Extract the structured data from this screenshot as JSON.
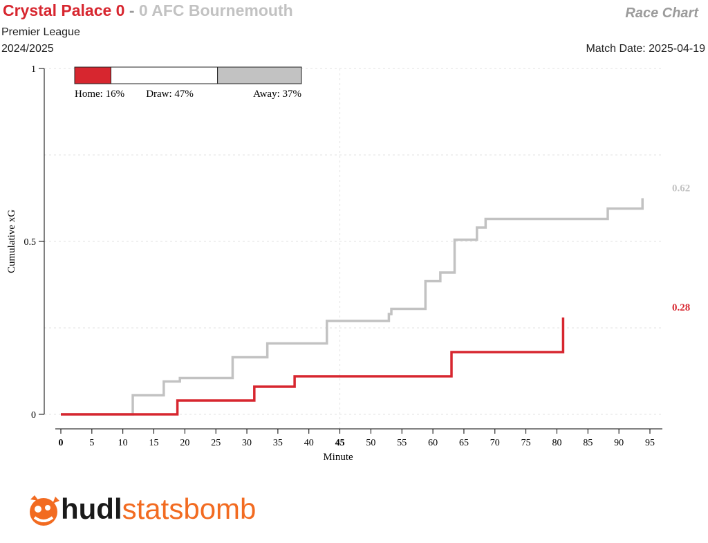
{
  "header": {
    "home_team": "Crystal Palace 0",
    "separator": " - ",
    "away_team": "0 AFC Bournemouth",
    "competition": "Premier League",
    "season": "2024/2025",
    "chart_type": "Race Chart",
    "match_date": "Match Date: 2025-04-19"
  },
  "colors": {
    "home": "#d7262f",
    "away": "#c2c2c2",
    "logo_orange": "#f26b21"
  },
  "logo": {
    "hudl": "hudl",
    "statsbomb": "statsbomb",
    "icon": "statsbomb-logo-icon"
  },
  "chart_data": {
    "type": "line",
    "xlabel": "Minute",
    "ylabel": "Cumulative xG",
    "xlim": [
      0,
      97
    ],
    "ylim": [
      0,
      1
    ],
    "x_ticks": [
      0,
      5,
      10,
      15,
      20,
      25,
      30,
      35,
      40,
      45,
      50,
      55,
      60,
      65,
      70,
      75,
      80,
      85,
      90,
      95
    ],
    "y_ticks": [
      0,
      0.5,
      1
    ],
    "y_tick_labels": [
      "0",
      "0.5",
      "1"
    ],
    "grid": true,
    "halftime_marker": 45,
    "series": [
      {
        "team": "home",
        "steps": [
          [
            0,
            0
          ],
          [
            12,
            0
          ],
          [
            18.8,
            0.04
          ],
          [
            31.2,
            0.08
          ],
          [
            37.7,
            0.11
          ],
          [
            63,
            0.18
          ],
          [
            81,
            0.28
          ]
        ],
        "end_minute": 81,
        "final_label": "0.28"
      },
      {
        "team": "away",
        "steps": [
          [
            0,
            0
          ],
          [
            11.6,
            0.055
          ],
          [
            16.6,
            0.095
          ],
          [
            19.2,
            0.105
          ],
          [
            27.7,
            0.165
          ],
          [
            33.3,
            0.205
          ],
          [
            42.9,
            0.27
          ],
          [
            52.9,
            0.29
          ],
          [
            53.3,
            0.305
          ],
          [
            58.8,
            0.385
          ],
          [
            61.2,
            0.41
          ],
          [
            63.5,
            0.505
          ],
          [
            67.1,
            0.54
          ],
          [
            68.5,
            0.565
          ],
          [
            88.2,
            0.595
          ],
          [
            93.8,
            0.625
          ]
        ],
        "end_minute": 93.8,
        "final_label": "0.62"
      }
    ],
    "outcome_probabilities": {
      "home": 0.16,
      "draw": 0.47,
      "away": 0.37,
      "home_label": "Home: 16%",
      "draw_label": "Draw: 47%",
      "away_label": "Away: 37%"
    }
  }
}
